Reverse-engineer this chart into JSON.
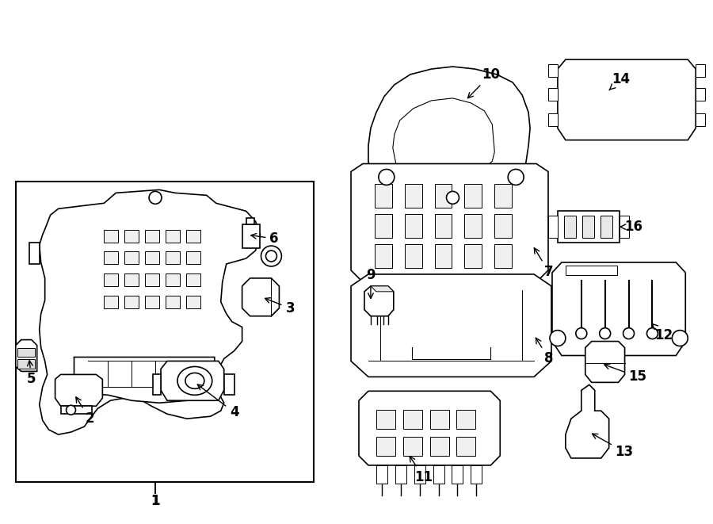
{
  "bg_color": "#ffffff",
  "line_color": "#000000",
  "line_width": 1.2,
  "fig_width": 9.0,
  "fig_height": 6.61
}
